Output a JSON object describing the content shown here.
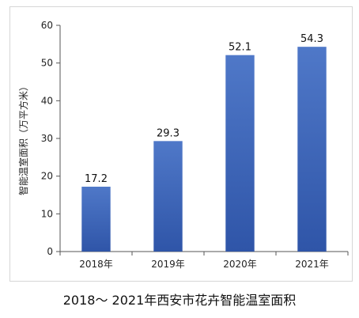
{
  "caption": "2018～ 2021年西安市花卉智能温室面积",
  "colors": {
    "bar_top": "#4f78c8",
    "bar_bottom": "#2f55a8",
    "axis": "#555555"
  },
  "chart_data": {
    "type": "bar",
    "title": "",
    "xlabel": "",
    "ylabel": "智能温室面积（万平方米）",
    "categories": [
      "2018年",
      "2019年",
      "2020年",
      "2021年"
    ],
    "values": [
      17.2,
      29.3,
      52.1,
      54.3
    ],
    "data_labels": [
      "17.2",
      "29.3",
      "52.1",
      "54.3"
    ],
    "ylim": [
      0,
      60
    ],
    "yticks": [
      0,
      10,
      20,
      30,
      40,
      50,
      60
    ],
    "grid": false,
    "legend": "none"
  }
}
